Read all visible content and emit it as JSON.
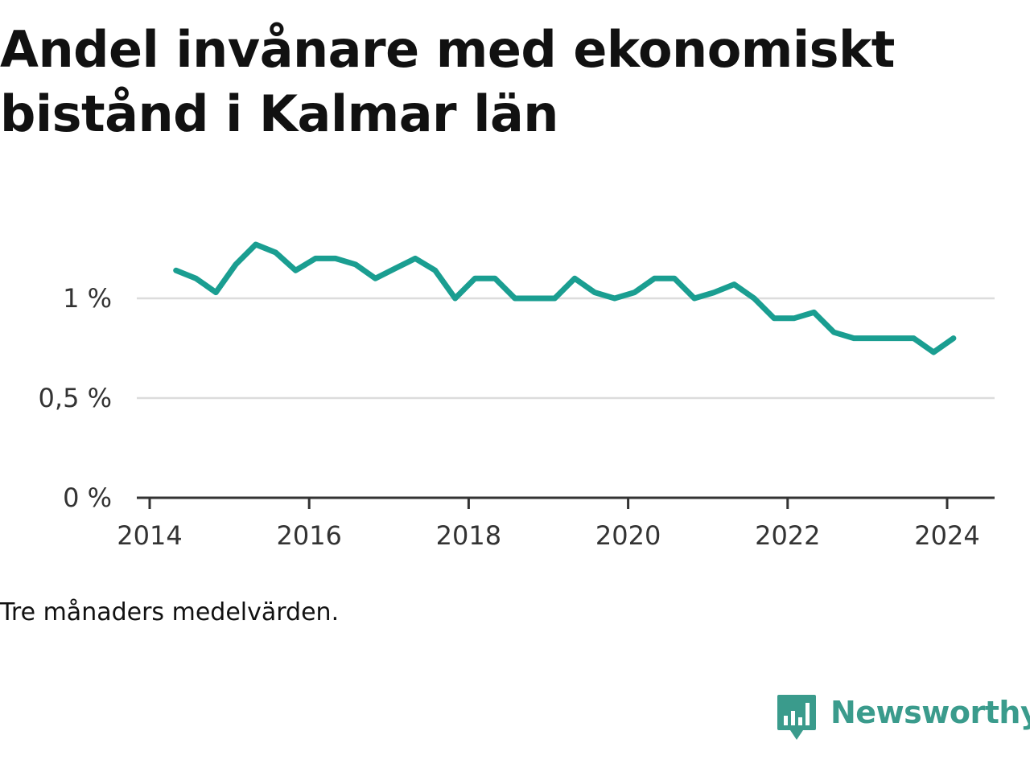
{
  "title": "Andel invånare med ekonomiskt bistånd i Kalmar län",
  "footnote": "Tre månaders medelvärden.",
  "brand": {
    "name": "Newsworthy",
    "logo_icon": "newsworthy-chart-icon",
    "color": "#3a9b8c"
  },
  "chart_data": {
    "type": "line",
    "title": "Andel invånare med ekonomiskt bistånd i Kalmar län",
    "xlabel": "",
    "ylabel": "",
    "xlim": [
      2013.9,
      2025.3
    ],
    "ylim": [
      0,
      1.1
    ],
    "x_ticks": [
      {
        "value": 2014,
        "label": "2014"
      },
      {
        "value": 2016,
        "label": "2016"
      },
      {
        "value": 2018,
        "label": "2018"
      },
      {
        "value": 2020,
        "label": "2020"
      },
      {
        "value": 2022,
        "label": "2022"
      },
      {
        "value": 2024,
        "label": "2024"
      }
    ],
    "y_ticks": [
      {
        "value": 0,
        "label": "0 %"
      },
      {
        "value": 0.5,
        "label": "0,5 %"
      },
      {
        "value": 1,
        "label": "1 %"
      }
    ],
    "grid": true,
    "line_color": "#1a9e91",
    "series": [
      {
        "x": [
          2014.33,
          2014.58,
          2014.83,
          2015.08,
          2015.33,
          2015.58,
          2015.83,
          2016.08,
          2016.33,
          2016.58,
          2016.83,
          2017.08,
          2017.33,
          2017.58,
          2017.83,
          2018.08,
          2018.33,
          2018.58,
          2018.83,
          2019.08,
          2019.33,
          2019.58,
          2019.83,
          2020.08,
          2020.33,
          2020.58,
          2020.83,
          2021.08,
          2021.33,
          2021.58,
          2021.83,
          2022.08,
          2022.33,
          2022.58,
          2022.83,
          2023.08,
          2023.33,
          2023.58,
          2023.83,
          2024.08
        ],
        "values": [
          1.14,
          1.1,
          1.03,
          1.17,
          1.27,
          1.23,
          1.14,
          1.2,
          1.2,
          1.17,
          1.1,
          1.15,
          1.2,
          1.14,
          1.0,
          1.1,
          1.1,
          1.0,
          1.0,
          1.0,
          1.1,
          1.03,
          1.0,
          1.03,
          1.1,
          1.1,
          1.0,
          1.03,
          1.07,
          1.0,
          0.9,
          0.9,
          0.93,
          0.83,
          0.8,
          0.8,
          0.8,
          0.8,
          0.73,
          0.8
        ]
      }
    ]
  }
}
